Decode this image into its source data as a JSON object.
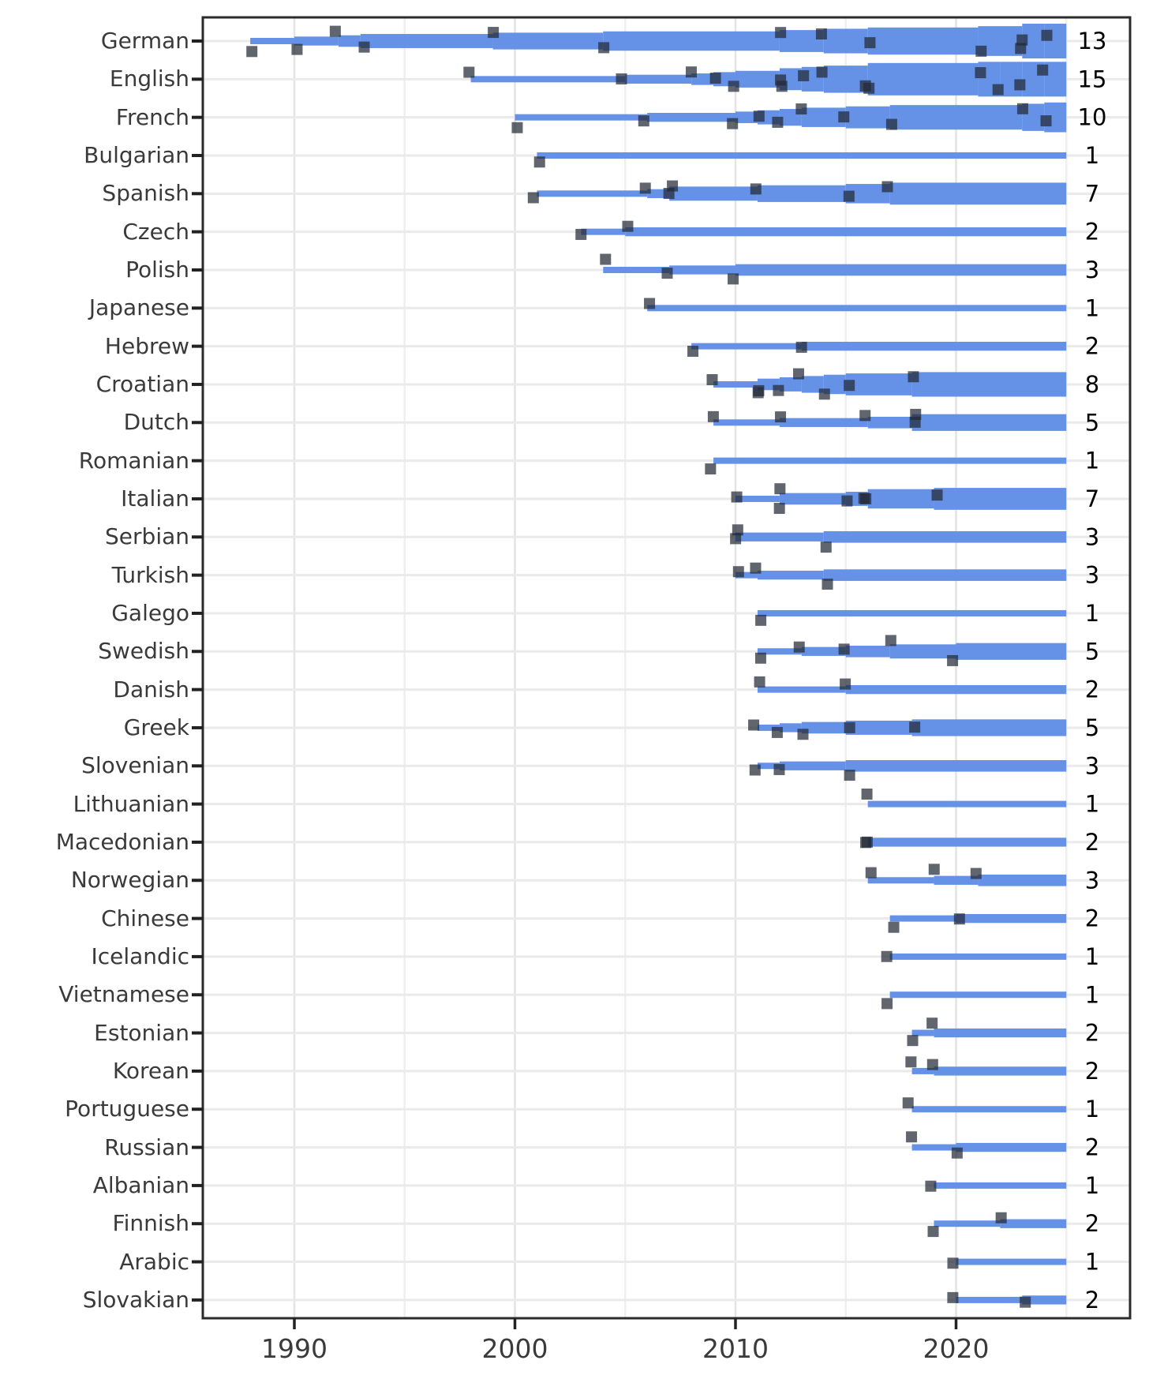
{
  "chart_data": {
    "type": "timeline-stream",
    "title": "",
    "description": "Cumulative translation timeline per language; stream thickness grows at each event marker, count label at right",
    "x_axis": {
      "tick_labels": [
        "1990",
        "2000",
        "2010",
        "2020"
      ],
      "major_ticks": [
        1990,
        2000,
        2010,
        2020
      ],
      "minor_gridlines": [
        1995,
        2005,
        2015,
        2025
      ],
      "range": [
        1986,
        2028
      ],
      "bars_end_year": 2025
    },
    "legend": null,
    "grid": "on",
    "colors": {
      "band_blue": "#6591e6",
      "marker_dark": "#232936",
      "gridline": "#eaeaea",
      "minor_gridline": "#efefef",
      "axis_border": "#2b2b2b",
      "label_text": "#3a3a3a",
      "count_text": "#000000",
      "background": "#ffffff"
    },
    "languages": [
      {
        "name": "German",
        "count": 13,
        "events": [
          1988,
          1990,
          1992,
          1993,
          1999,
          2004,
          2012,
          2014,
          2016,
          2021,
          2023,
          2023,
          2024
        ]
      },
      {
        "name": "English",
        "count": 15,
        "events": [
          1998,
          2005,
          2008,
          2009,
          2010,
          2012,
          2012,
          2013,
          2014,
          2016,
          2016,
          2021,
          2022,
          2023,
          2024
        ]
      },
      {
        "name": "French",
        "count": 10,
        "events": [
          2000,
          2006,
          2010,
          2011,
          2012,
          2013,
          2015,
          2017,
          2023,
          2024
        ]
      },
      {
        "name": "Bulgarian",
        "count": 1,
        "events": [
          2001
        ]
      },
      {
        "name": "Spanish",
        "count": 7,
        "events": [
          2001,
          2006,
          2007,
          2007,
          2011,
          2015,
          2017
        ]
      },
      {
        "name": "Czech",
        "count": 2,
        "events": [
          2003,
          2005
        ]
      },
      {
        "name": "Polish",
        "count": 3,
        "events": [
          2004,
          2007,
          2010
        ]
      },
      {
        "name": "Japanese",
        "count": 1,
        "events": [
          2006
        ]
      },
      {
        "name": "Hebrew",
        "count": 2,
        "events": [
          2008,
          2013
        ]
      },
      {
        "name": "Croatian",
        "count": 8,
        "events": [
          2009,
          2011,
          2011,
          2012,
          2013,
          2014,
          2015,
          2018
        ]
      },
      {
        "name": "Dutch",
        "count": 5,
        "events": [
          2009,
          2012,
          2016,
          2018,
          2018
        ]
      },
      {
        "name": "Romanian",
        "count": 1,
        "events": [
          2009
        ]
      },
      {
        "name": "Italian",
        "count": 7,
        "events": [
          2010,
          2012,
          2012,
          2015,
          2016,
          2016,
          2019
        ]
      },
      {
        "name": "Serbian",
        "count": 3,
        "events": [
          2010,
          2010,
          2014
        ]
      },
      {
        "name": "Turkish",
        "count": 3,
        "events": [
          2010,
          2011,
          2014
        ]
      },
      {
        "name": "Galego",
        "count": 1,
        "events": [
          2011
        ]
      },
      {
        "name": "Swedish",
        "count": 5,
        "events": [
          2011,
          2013,
          2015,
          2017,
          2020
        ]
      },
      {
        "name": "Danish",
        "count": 2,
        "events": [
          2011,
          2015
        ]
      },
      {
        "name": "Greek",
        "count": 5,
        "events": [
          2011,
          2012,
          2013,
          2015,
          2018
        ]
      },
      {
        "name": "Slovenian",
        "count": 3,
        "events": [
          2011,
          2012,
          2015
        ]
      },
      {
        "name": "Lithuanian",
        "count": 1,
        "events": [
          2016
        ]
      },
      {
        "name": "Macedonian",
        "count": 2,
        "events": [
          2016,
          2016
        ]
      },
      {
        "name": "Norwegian",
        "count": 3,
        "events": [
          2016,
          2019,
          2021
        ]
      },
      {
        "name": "Chinese",
        "count": 2,
        "events": [
          2017,
          2020
        ]
      },
      {
        "name": "Icelandic",
        "count": 1,
        "events": [
          2017
        ]
      },
      {
        "name": "Vietnamese",
        "count": 1,
        "events": [
          2017
        ]
      },
      {
        "name": "Estonian",
        "count": 2,
        "events": [
          2018,
          2019
        ]
      },
      {
        "name": "Korean",
        "count": 2,
        "events": [
          2018,
          2019
        ]
      },
      {
        "name": "Portuguese",
        "count": 1,
        "events": [
          2018
        ]
      },
      {
        "name": "Russian",
        "count": 2,
        "events": [
          2018,
          2020
        ]
      },
      {
        "name": "Albanian",
        "count": 1,
        "events": [
          2019
        ]
      },
      {
        "name": "Finnish",
        "count": 2,
        "events": [
          2019,
          2022
        ]
      },
      {
        "name": "Arabic",
        "count": 1,
        "events": [
          2020
        ]
      },
      {
        "name": "Slovakian",
        "count": 2,
        "events": [
          2020,
          2023
        ]
      }
    ]
  }
}
